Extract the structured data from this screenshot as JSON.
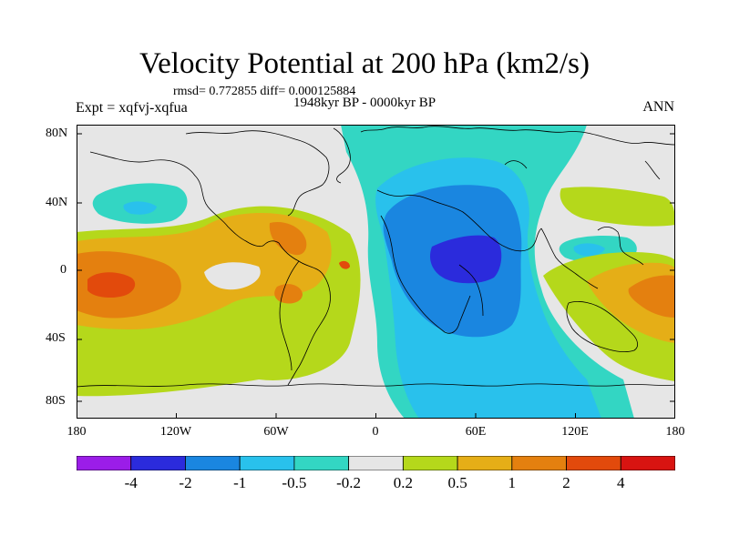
{
  "title": "Velocity Potential at 200 hPa (km2/s)",
  "stats": "rmsd= 0.772855 diff= 0.000125884",
  "experiment": "Expt = xqfvj-xqfua",
  "period": "1948kyr BP - 0000kyr BP",
  "season": "ANN",
  "lat_labels": [
    "80N",
    "40N",
    "0",
    "40S",
    "80S"
  ],
  "lon_labels": [
    "180",
    "120W",
    "60W",
    "0",
    "60E",
    "120E",
    "180"
  ],
  "colorbar": {
    "colors": [
      "#9b1de8",
      "#2b2bdc",
      "#1a86e0",
      "#29c1ec",
      "#33d6c3",
      "#e6e6e6",
      "#b5d81b",
      "#e5ae17",
      "#e4800f",
      "#e24a0c",
      "#d81411"
    ],
    "labels": [
      "-4",
      "-2",
      "-1",
      "-0.5",
      "-0.2",
      "0.2",
      "0.5",
      "1",
      "2",
      "4"
    ]
  }
}
